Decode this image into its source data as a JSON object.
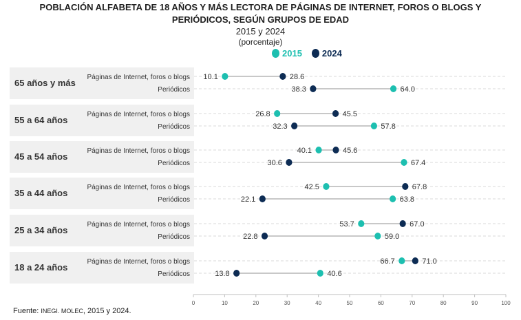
{
  "title_line1": "POBLACIÓN ALFABETA DE 18 AÑOS Y MÁS LECTORA DE PÁGINAS DE INTERNET, FOROS O BLOGS Y",
  "title_line2": "PERIÓDICOS, SEGÚN GRUPOS DE EDAD",
  "subtitle": "2015 y 2024",
  "unit": "(porcentaje)",
  "legend": [
    {
      "label": "2015",
      "color": "#1dbfb0"
    },
    {
      "label": "2024",
      "color": "#0d2c54"
    }
  ],
  "source_prefix": "Fuente: ",
  "source_org": "INEGI. MOLEC",
  "source_suffix": ", 2015 y 2024.",
  "colors": {
    "y2015": "#1dbfb0",
    "y2024": "#0d2c54",
    "connector": "#c8c8c8",
    "band": "#f0f0f0",
    "grid": "#d9d9d9"
  },
  "chart_data": {
    "type": "dumbbell",
    "xlim": [
      0,
      100
    ],
    "xticks": [
      0,
      10,
      20,
      30,
      40,
      50,
      60,
      70,
      80,
      90,
      100
    ],
    "series_names": [
      "2015",
      "2024"
    ],
    "groups": [
      {
        "name": "65 años y más",
        "rows": [
          {
            "label": "Páginas de Internet, foros o blogs",
            "v2015": 10.1,
            "v2024": 28.6
          },
          {
            "label": "Periódicos",
            "v2015": 64.0,
            "v2024": 38.3
          }
        ]
      },
      {
        "name": "55 a 64 años",
        "rows": [
          {
            "label": "Páginas de Internet, foros o blogs",
            "v2015": 26.8,
            "v2024": 45.5
          },
          {
            "label": "Periódicos",
            "v2015": 57.8,
            "v2024": 32.3
          }
        ]
      },
      {
        "name": "45 a 54 años",
        "rows": [
          {
            "label": "Páginas de Internet, foros o blogs",
            "v2015": 40.1,
            "v2024": 45.6
          },
          {
            "label": "Periódicos",
            "v2015": 67.4,
            "v2024": 30.6
          }
        ]
      },
      {
        "name": "35 a 44 años",
        "rows": [
          {
            "label": "Páginas de Internet, foros o blogs",
            "v2015": 42.5,
            "v2024": 67.8
          },
          {
            "label": "Periódicos",
            "v2015": 63.8,
            "v2024": 22.1
          }
        ]
      },
      {
        "name": "25 a 34 años",
        "rows": [
          {
            "label": "Páginas de Internet, foros o blogs",
            "v2015": 53.7,
            "v2024": 67.0
          },
          {
            "label": "Periódicos",
            "v2015": 59.0,
            "v2024": 22.8
          }
        ]
      },
      {
        "name": "18 a 24 años",
        "rows": [
          {
            "label": "Páginas de Internet, foros o blogs",
            "v2015": 66.7,
            "v2024": 71.0
          },
          {
            "label": "Periódicos",
            "v2015": 40.6,
            "v2024": 13.8
          }
        ]
      }
    ]
  }
}
